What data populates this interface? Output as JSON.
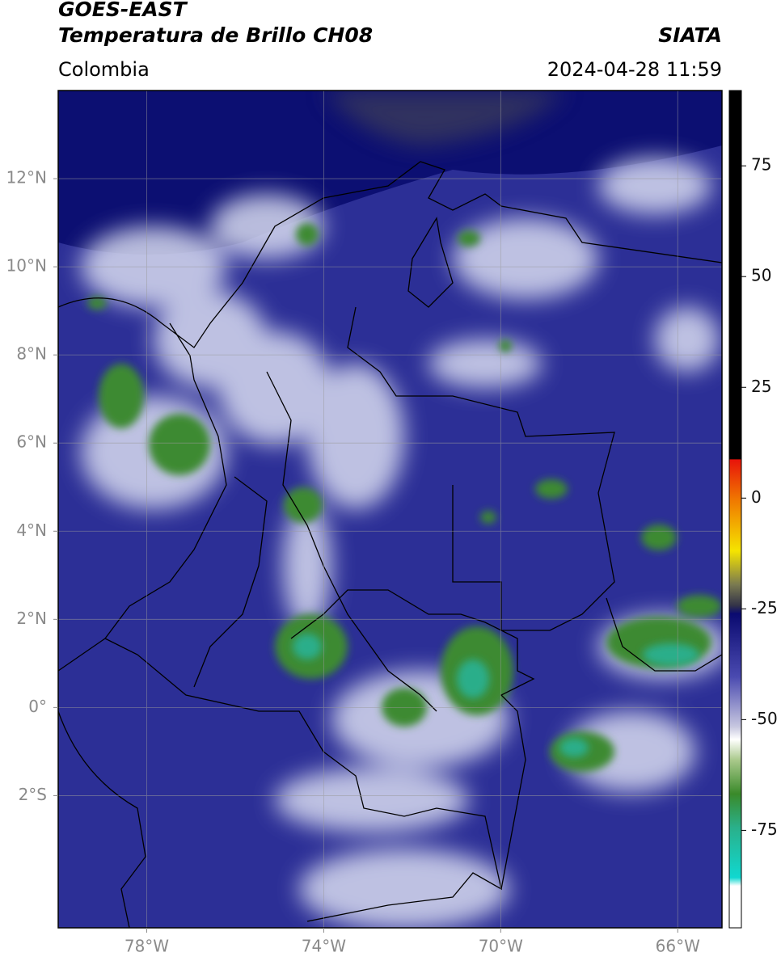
{
  "header": {
    "title_line1": "GOES-EAST",
    "title_line2": "Temperatura de Brillo CH08",
    "region": "Colombia",
    "source": "SIATA",
    "timestamp": "2024-04-28 11:59"
  },
  "map": {
    "lon_range": [
      -80,
      -65
    ],
    "lat_range": [
      -5,
      14
    ],
    "lon_ticks": [
      {
        "value": -78,
        "label": "78°W"
      },
      {
        "value": -74,
        "label": "74°W"
      },
      {
        "value": -70,
        "label": "70°W"
      },
      {
        "value": -66,
        "label": "66°W"
      }
    ],
    "lat_ticks": [
      {
        "value": 12,
        "label": "12°N"
      },
      {
        "value": 10,
        "label": "10°N"
      },
      {
        "value": 8,
        "label": "8°N"
      },
      {
        "value": 6,
        "label": "6°N"
      },
      {
        "value": 4,
        "label": "4°N"
      },
      {
        "value": 2,
        "label": "2°N"
      },
      {
        "value": 0,
        "label": "0°"
      },
      {
        "value": -2,
        "label": "2°S"
      }
    ]
  },
  "colorbar": {
    "range": [
      -97,
      92
    ],
    "ticks": [
      75,
      50,
      25,
      0,
      -25,
      -50,
      -75
    ]
  }
}
